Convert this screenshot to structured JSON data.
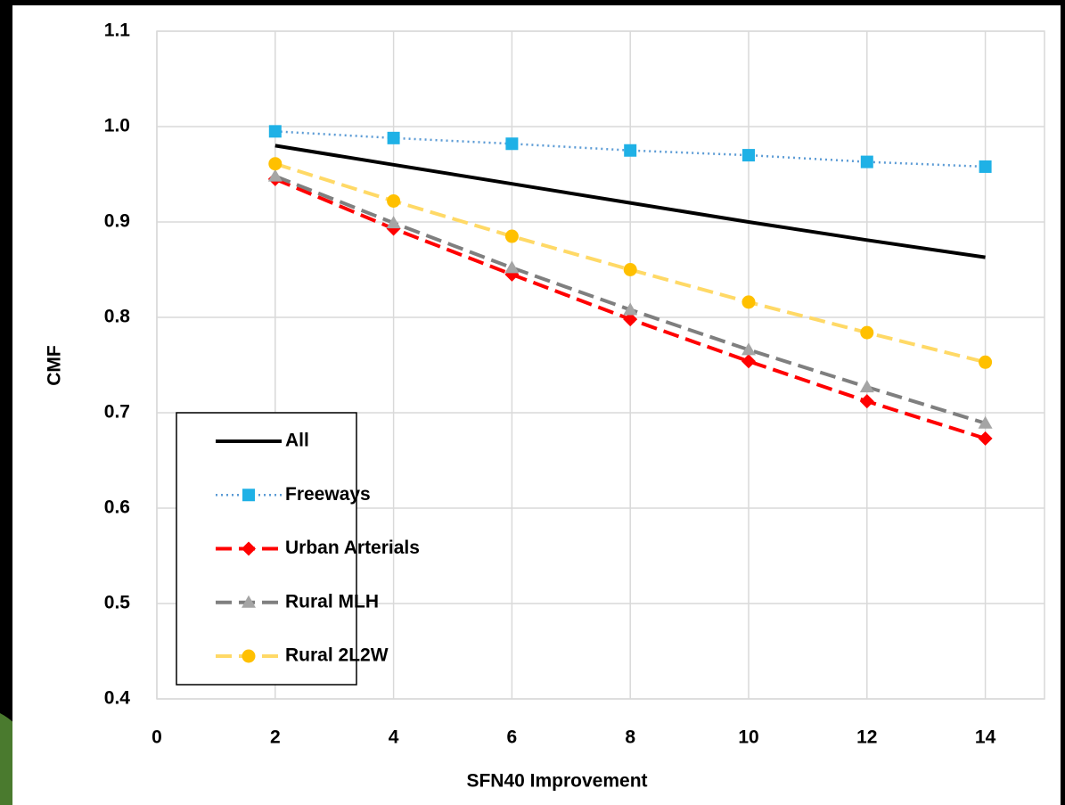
{
  "chart_data": {
    "type": "line",
    "x_label": "SFN40 Improvement",
    "y_label": "CMF",
    "x": [
      2,
      4,
      6,
      8,
      10,
      12,
      14
    ],
    "series": [
      {
        "name": "All",
        "color": "#000000",
        "line_style": "solid",
        "marker": "none",
        "values": [
          0.98,
          0.96,
          0.94,
          0.92,
          0.9,
          0.881,
          0.863
        ]
      },
      {
        "name": "Freeways",
        "color": "#5b9bd5",
        "marker_color": "#1fb1e6",
        "line_style": "dotted",
        "marker": "square",
        "values": [
          0.995,
          0.988,
          0.982,
          0.975,
          0.97,
          0.963,
          0.958
        ]
      },
      {
        "name": "Urban Arterials",
        "color": "#ff0000",
        "line_style": "dashed",
        "marker": "diamond",
        "values": [
          0.945,
          0.893,
          0.845,
          0.798,
          0.754,
          0.712,
          0.673
        ]
      },
      {
        "name": "Rural MLH",
        "color": "#7f7f7f",
        "marker_color": "#a5a5a5",
        "line_style": "dashed",
        "marker": "triangle",
        "values": [
          0.948,
          0.899,
          0.852,
          0.808,
          0.766,
          0.727,
          0.689
        ]
      },
      {
        "name": "Rural 2L2W",
        "color": "#ffd966",
        "marker_color": "#ffc000",
        "line_style": "dashed",
        "marker": "circle",
        "values": [
          0.961,
          0.922,
          0.885,
          0.85,
          0.816,
          0.784,
          0.753
        ]
      }
    ],
    "xlim": [
      0,
      15
    ],
    "xticks": [
      0,
      2,
      4,
      6,
      8,
      10,
      12,
      14
    ],
    "ylim": [
      0.4,
      1.1
    ],
    "yticks": [
      0.4,
      0.5,
      0.6,
      0.7,
      0.8,
      0.9,
      {
        "value": 1,
        "label": "1.0"
      },
      1.1
    ],
    "grid": true,
    "legend": "lower left"
  }
}
